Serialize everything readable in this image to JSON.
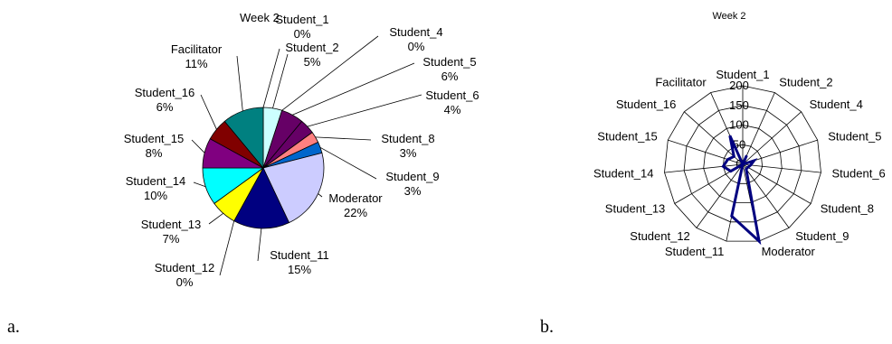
{
  "captions": {
    "a": "a.",
    "b": "b."
  },
  "chart_data": [
    {
      "type": "pie",
      "title": "Week 2",
      "categories": [
        "Student_1",
        "Student_2",
        "Student_4",
        "Student_5",
        "Student_6",
        "Student_8",
        "Student_9",
        "Moderator",
        "Student_11",
        "Student_12",
        "Student_13",
        "Student_14",
        "Student_15",
        "Student_16",
        "Facilitator"
      ],
      "values": [
        0,
        5,
        0,
        6,
        4,
        3,
        3,
        22,
        15,
        0,
        7,
        10,
        8,
        6,
        11
      ],
      "value_labels": [
        "0%",
        "5%",
        "0%",
        "6%",
        "4%",
        "3%",
        "3%",
        "22%",
        "15%",
        "0%",
        "7%",
        "10%",
        "8%",
        "6%",
        "11%"
      ],
      "colors": {
        "Student_1": "#993366",
        "Student_2": "#ccffff",
        "Student_4": "#660066",
        "Student_5": "#660066",
        "Student_6": "#660066",
        "Student_8": "#ff8080",
        "Student_9": "#0066cc",
        "Moderator": "#ccccff",
        "Student_11": "#000080",
        "Student_12": "#ff00ff",
        "Student_13": "#ffff00",
        "Student_14": "#00ffff",
        "Student_15": "#800080",
        "Student_16": "#800000",
        "Facilitator": "#008080"
      }
    },
    {
      "type": "radar",
      "title": "Week 2",
      "categories": [
        "Student_1",
        "Student_2",
        "Student_4",
        "Student_5",
        "Student_6",
        "Student_8",
        "Student_9",
        "Moderator",
        "Student_11",
        "Student_12",
        "Student_13",
        "Student_14",
        "Student_15",
        "Student_16",
        "Facilitator"
      ],
      "series": [
        {
          "values": [
            0,
            25,
            0,
            30,
            20,
            15,
            15,
            200,
            135,
            0,
            35,
            50,
            40,
            30,
            80
          ]
        }
      ],
      "r_ticks": [
        "0",
        "50",
        "100",
        "150",
        "200"
      ],
      "r_max": 200,
      "series_color": "#000080"
    }
  ]
}
